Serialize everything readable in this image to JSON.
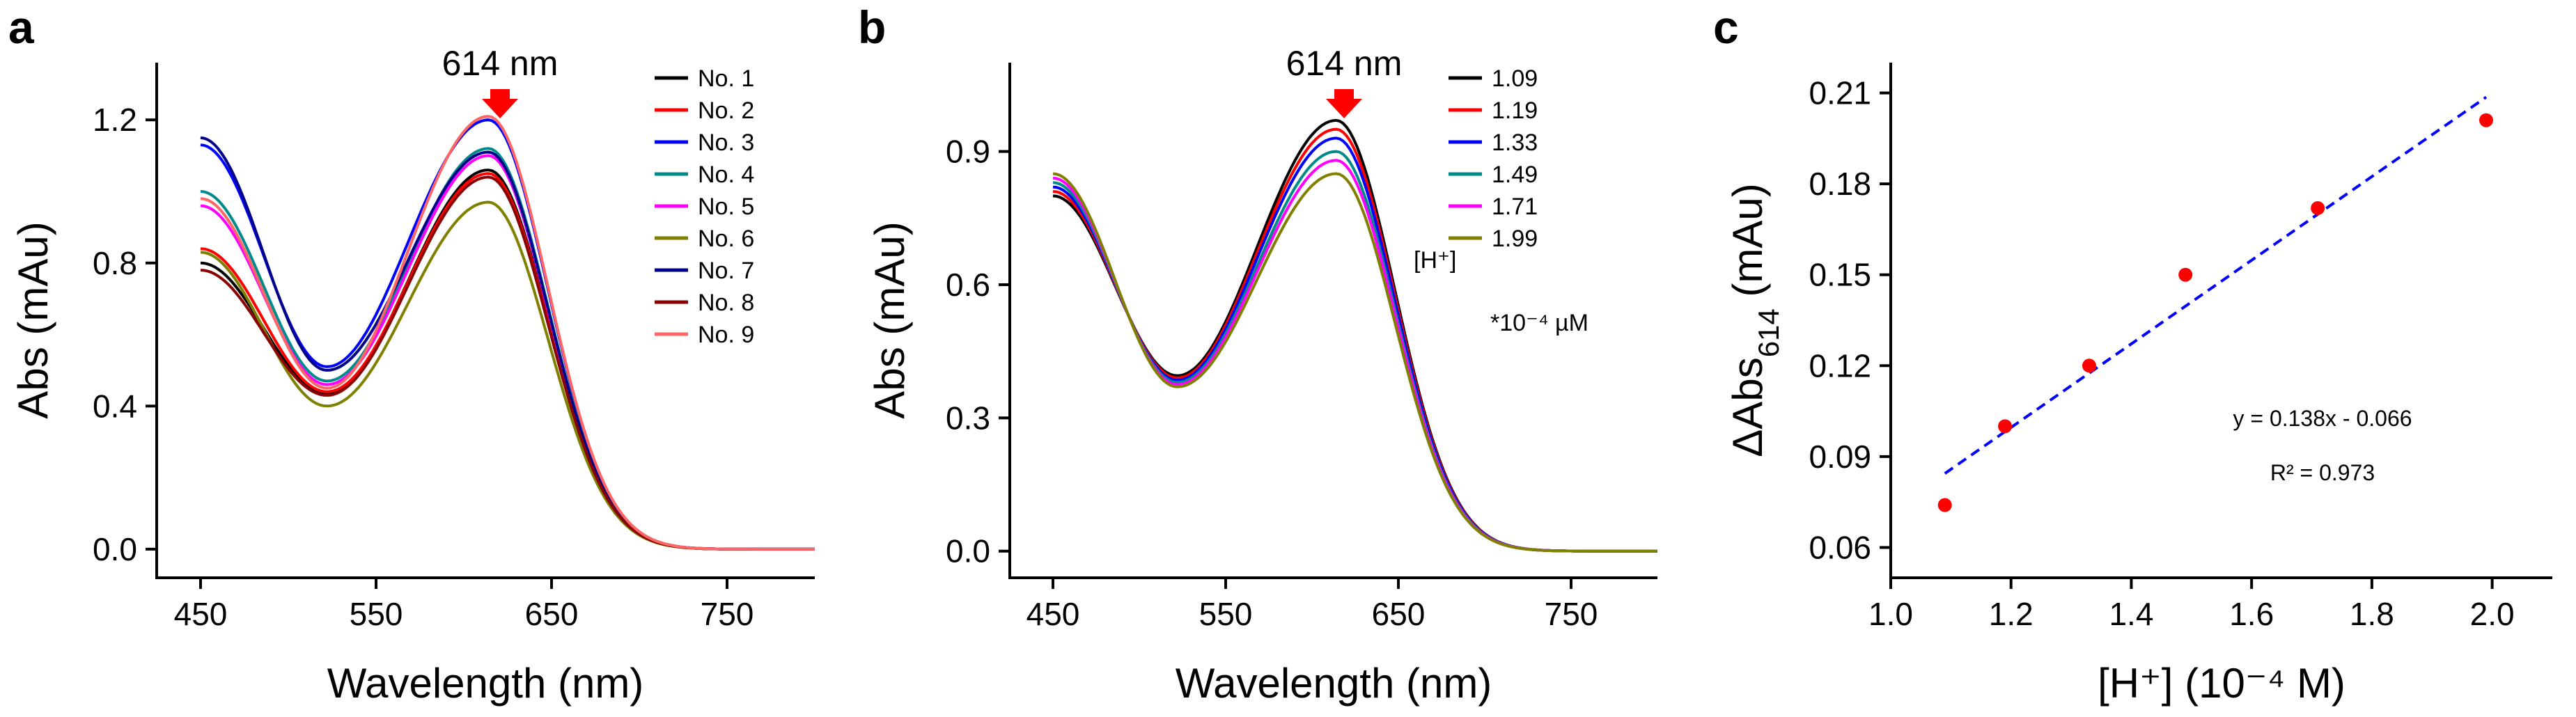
{
  "colors": {
    "No. 1": "#000000",
    "No. 2": "#ff0000",
    "No. 3": "#0000ff",
    "No. 4": "#008b8b",
    "No. 5": "#ff00ff",
    "No. 6": "#808000",
    "No. 7": "#00008b",
    "No. 8": "#8b0000",
    "No. 9": "#ff6666",
    "fit": "#0000ff",
    "points": "#ff0000",
    "arrow": "#ff0000"
  },
  "chart_data": [
    {
      "panel": "a",
      "type": "line",
      "xlabel": "Wavelength (nm)",
      "ylabel": "Abs (mAu)",
      "xlim": [
        425,
        800
      ],
      "ylim": [
        -0.08,
        1.36
      ],
      "xticks": [
        450,
        550,
        650,
        750
      ],
      "yticks": [
        0.0,
        0.4,
        0.8,
        1.2
      ],
      "ytick_labels": [
        "0.0",
        "0.4",
        "0.8",
        "1.2"
      ],
      "annotation": "614 nm",
      "peak_x": 614,
      "series": [
        {
          "name": "No. 1",
          "start": 0.8,
          "min": 0.435,
          "peak": 1.06
        },
        {
          "name": "No. 2",
          "start": 0.84,
          "min": 0.44,
          "peak": 1.05
        },
        {
          "name": "No. 3",
          "start": 1.13,
          "min": 0.51,
          "peak": 1.2
        },
        {
          "name": "No. 4",
          "start": 1.0,
          "min": 0.47,
          "peak": 1.12
        },
        {
          "name": "No. 5",
          "start": 0.96,
          "min": 0.46,
          "peak": 1.1
        },
        {
          "name": "No. 6",
          "start": 0.83,
          "min": 0.4,
          "peak": 0.97
        },
        {
          "name": "No. 7",
          "start": 1.15,
          "min": 0.5,
          "peak": 1.11
        },
        {
          "name": "No. 8",
          "start": 0.78,
          "min": 0.43,
          "peak": 1.04
        },
        {
          "name": "No. 9",
          "start": 0.98,
          "min": 0.45,
          "peak": 1.21
        }
      ]
    },
    {
      "panel": "b",
      "type": "line",
      "xlabel": "Wavelength (nm)",
      "ylabel": "Abs (mAu)",
      "xlim": [
        425,
        800
      ],
      "ylim": [
        -0.06,
        1.1
      ],
      "xticks": [
        450,
        550,
        650,
        750
      ],
      "yticks": [
        0.0,
        0.3,
        0.6,
        0.9
      ],
      "ytick_labels": [
        "0.0",
        "0.3",
        "0.6",
        "0.9"
      ],
      "annotation": "614 nm",
      "peak_x": 614,
      "legend_title": "[H⁺]",
      "legend_unit": "*10⁻⁴ µM",
      "series": [
        {
          "name": "1.09",
          "start": 0.8,
          "min": 0.395,
          "peak": 0.97
        },
        {
          "name": "1.19",
          "start": 0.81,
          "min": 0.39,
          "peak": 0.95
        },
        {
          "name": "1.33",
          "start": 0.82,
          "min": 0.385,
          "peak": 0.93
        },
        {
          "name": "1.49",
          "start": 0.83,
          "min": 0.38,
          "peak": 0.9
        },
        {
          "name": "1.71",
          "start": 0.84,
          "min": 0.375,
          "peak": 0.88
        },
        {
          "name": "1.99",
          "start": 0.85,
          "min": 0.37,
          "peak": 0.85
        }
      ]
    },
    {
      "panel": "c",
      "type": "scatter",
      "xlabel": "[H⁺] (10⁻⁴ M)",
      "ylabel_main": "ΔAbs",
      "ylabel_sub": "614",
      "ylabel_unit": " (mAu)",
      "xlim": [
        1.0,
        2.1
      ],
      "ylim": [
        0.05,
        0.22
      ],
      "xticks": [
        1.0,
        1.2,
        1.4,
        1.6,
        1.8,
        2.0
      ],
      "xtick_labels": [
        "1.0",
        "1.2",
        "1.4",
        "1.6",
        "1.8",
        "2.0"
      ],
      "yticks": [
        0.06,
        0.09,
        0.12,
        0.15,
        0.18,
        0.21
      ],
      "ytick_labels": [
        "0.06",
        "0.09",
        "0.12",
        "0.15",
        "0.18",
        "0.21"
      ],
      "x": [
        1.09,
        1.19,
        1.33,
        1.49,
        1.71,
        1.99
      ],
      "y": [
        0.074,
        0.1,
        0.12,
        0.15,
        0.172,
        0.201
      ],
      "fit": {
        "slope": 0.138,
        "intercept": -0.066,
        "x_range": [
          1.09,
          1.99
        ]
      },
      "equation": "y = 0.138x - 0.066",
      "r2": "R² = 0.973"
    }
  ]
}
